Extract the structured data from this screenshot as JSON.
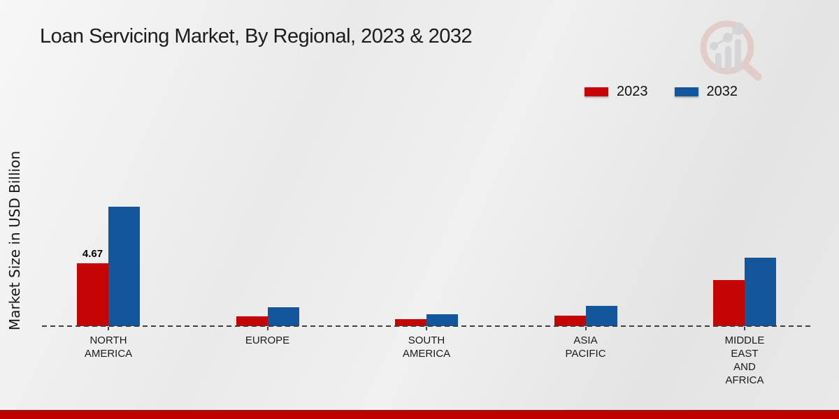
{
  "title": "Loan Servicing Market, By Regional, 2023 & 2032",
  "legend": [
    {
      "label": "2023",
      "color": "#c50404"
    },
    {
      "label": "2032",
      "color": "#13569c"
    }
  ],
  "icons": {
    "watermark": "magnifier-bar-chart-logo"
  },
  "colors": {
    "series_2023": "#c50404",
    "series_2032": "#13569c",
    "dashed_baseline": "#3f3f3f",
    "footer_strip": "#c00000",
    "footer_strip_edge": "#8b1a12",
    "background": "#eaeaea",
    "text": "#1b1b1b"
  },
  "chart_data": {
    "type": "bar",
    "title": "Loan Servicing Market, By Regional, 2023 & 2032",
    "ylabel": "Market Size in USD Billion",
    "xlabel": "",
    "categories": [
      "NORTH AMERICA",
      "EUROPE",
      "SOUTH AMERICA",
      "ASIA PACIFIC",
      "MIDDLE EAST AND AFRICA"
    ],
    "category_lines": [
      [
        "NORTH",
        "AMERICA"
      ],
      [
        "EUROPE"
      ],
      [
        "SOUTH",
        "AMERICA"
      ],
      [
        "ASIA",
        "PACIFIC"
      ],
      [
        "MIDDLE",
        "EAST",
        "AND",
        "AFRICA"
      ]
    ],
    "series": [
      {
        "name": "2023",
        "color": "#c50404",
        "values": [
          4.67,
          0.75,
          0.5,
          0.78,
          3.45
        ]
      },
      {
        "name": "2032",
        "color": "#13569c",
        "values": [
          8.87,
          1.42,
          0.88,
          1.48,
          5.1
        ]
      }
    ],
    "data_labels": [
      {
        "series": "2023",
        "category": "NORTH AMERICA",
        "text": "4.67"
      }
    ],
    "ylim": [
      0,
      9.5
    ],
    "grid": false,
    "baseline_style": "dashed",
    "legend_position": "top-right",
    "units": "USD Billion"
  }
}
